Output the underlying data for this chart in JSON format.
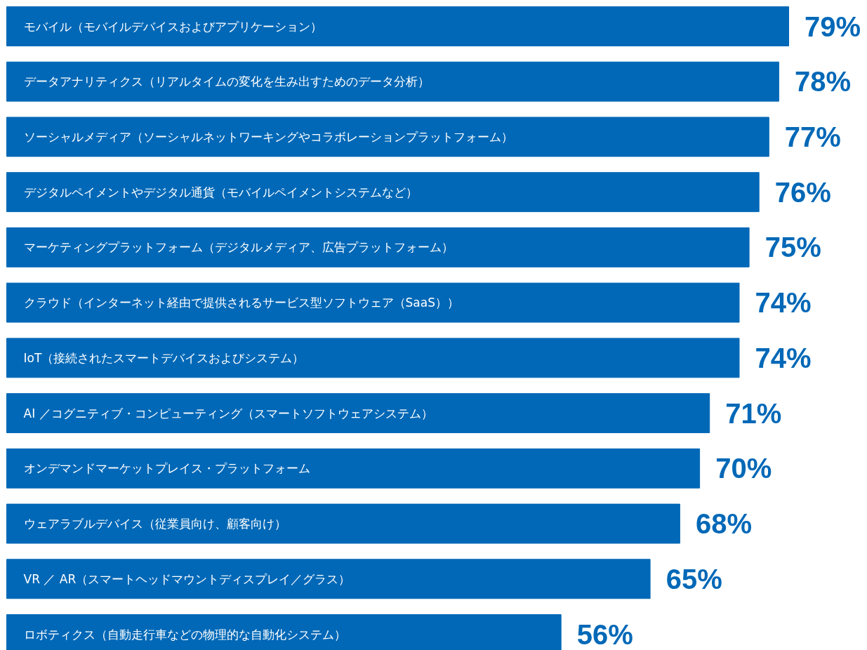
{
  "chart_data": {
    "type": "bar",
    "orientation": "horizontal",
    "color": "#0068b7",
    "categories": [
      "モバイル（モバイルデバイスおよびアプリケーション）",
      "データアナリティクス（リアルタイムの変化を生み出すためのデータ分析）",
      "ソーシャルメディア（ソーシャルネットワーキングやコラボレーションプラットフォーム）",
      "デジタルペイメントやデジタル通貨（モバイルペイメントシステムなど）",
      "マーケティングプラットフォーム（デジタルメディア、広告プラットフォーム）",
      "クラウド（インターネット経由で提供されるサービス型ソフトウェア（SaaS））",
      "IoT（接続されたスマートデバイスおよびシステム）",
      "AI ／コグニティブ・コンピューティング（スマートソフトウェアシステム）",
      "オンデマンドマーケットプレイス・プラットフォーム",
      "ウェアラブルデバイス（従業員向け、顧客向け）",
      "VR ／ AR（スマートヘッドマウントディスプレイ／グラス）",
      "ロボティクス（自動走行車などの物理的な自動化システム）"
    ],
    "values": [
      79,
      78,
      77,
      76,
      75,
      74,
      74,
      71,
      70,
      68,
      65,
      56
    ],
    "value_labels": [
      "79%",
      "78%",
      "77%",
      "76%",
      "75%",
      "74%",
      "74%",
      "71%",
      "70%",
      "68%",
      "65%",
      "56%"
    ]
  }
}
